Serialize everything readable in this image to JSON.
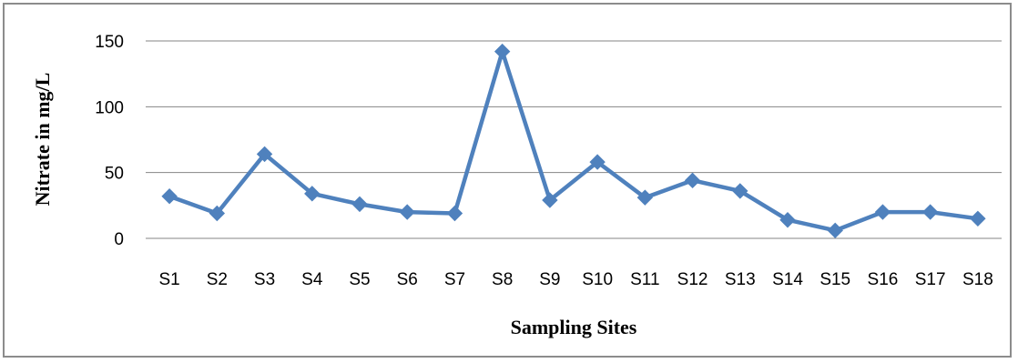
{
  "chart_data": {
    "type": "line",
    "title": "",
    "xlabel": "Sampling Sites",
    "ylabel": "Nitrate in mg/L",
    "categories": [
      "S1",
      "S2",
      "S3",
      "S4",
      "S5",
      "S6",
      "S7",
      "S8",
      "S9",
      "S10",
      "S11",
      "S12",
      "S13",
      "S14",
      "S15",
      "S16",
      "S17",
      "S18"
    ],
    "series": [
      {
        "values": [
          32,
          19,
          64,
          34,
          26,
          20,
          19,
          142,
          29,
          58,
          31,
          44,
          36,
          14,
          6,
          20,
          20,
          15
        ],
        "color": "#4f81bd",
        "marker": "diamond"
      }
    ],
    "ylim": [
      0,
      150
    ],
    "yticks": [
      0,
      50,
      100,
      150
    ],
    "grid": "horizontal",
    "legend": "none",
    "gridline_color": "#868686"
  }
}
